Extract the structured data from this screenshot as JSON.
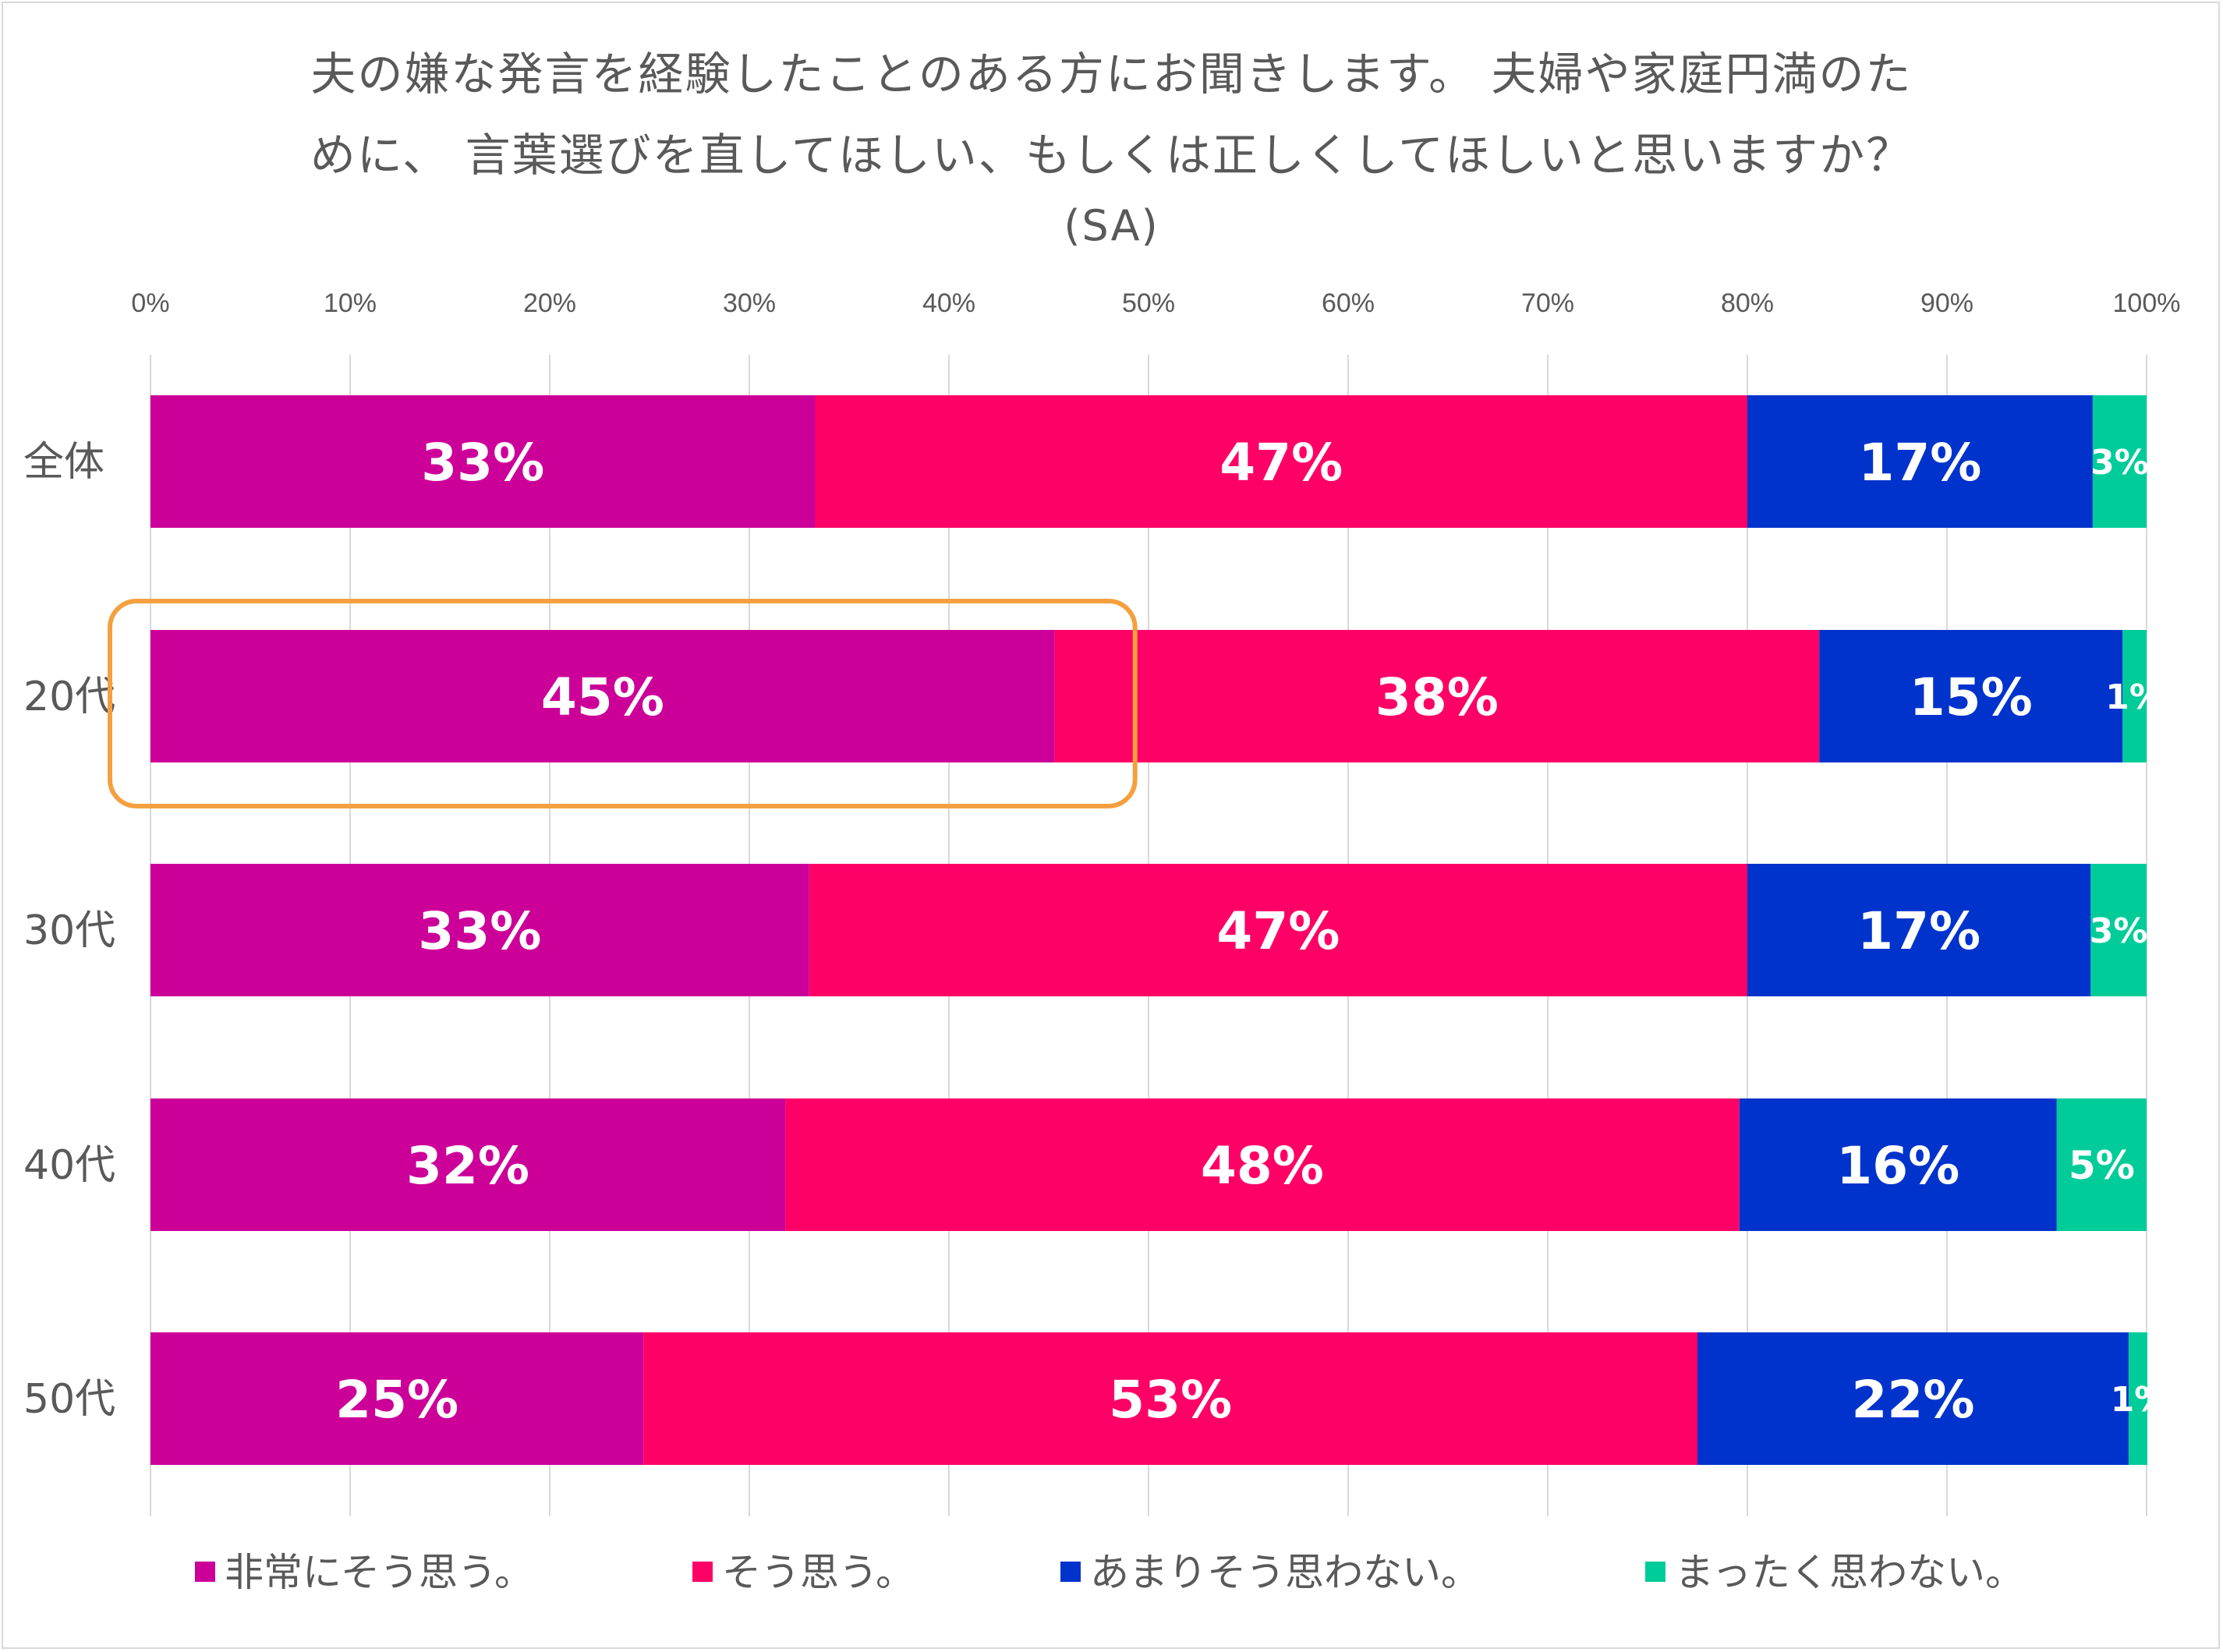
{
  "chart_data": {
    "type": "bar",
    "orientation": "horizontal",
    "stacked": true,
    "normalized": true,
    "title": "夫の嫌な発言を経験したことのある方にお聞きします。 夫婦や家庭円満のために、 言葉選びを直してほしい、もしくは正しくしてほしいと思いますか？",
    "title_lines": [
      "夫の嫌な発言を経験したことのある方にお聞きします。 夫婦や家庭円満のた",
      "めに、 言葉選びを直してほしい、もしくは正しくしてほしいと思いますか？"
    ],
    "subtitle": "(SA)",
    "categories": [
      "全体",
      "20代",
      "30代",
      "40代",
      "50代"
    ],
    "xlim": [
      0,
      100
    ],
    "xticks": [
      "0%",
      "10%",
      "20%",
      "30%",
      "40%",
      "50%",
      "60%",
      "70%",
      "80%",
      "90%",
      "100%"
    ],
    "grid": true,
    "legend_position": "bottom",
    "series": [
      {
        "name": "非常にそう思う。",
        "color": "#CC0099",
        "values": [
          33.3,
          45.3,
          33.0,
          31.8,
          24.7
        ],
        "labels": [
          "33%",
          "45%",
          "33%",
          "32%",
          "25%"
        ]
      },
      {
        "name": "そう思う。",
        "color": "#FF0066",
        "values": [
          46.7,
          38.3,
          47.0,
          47.8,
          52.8
        ],
        "labels": [
          "47%",
          "38%",
          "47%",
          "48%",
          "53%"
        ]
      },
      {
        "name": "あまりそう思わない。",
        "color": "#0033CC",
        "values": [
          17.3,
          15.2,
          17.2,
          15.9,
          21.6
        ],
        "labels": [
          "17%",
          "15%",
          "17%",
          "16%",
          "22%"
        ]
      },
      {
        "name": "まったく思わない。",
        "color": "#00CC99",
        "values": [
          2.7,
          1.2,
          2.8,
          4.5,
          1.1
        ],
        "labels": [
          "3%",
          "1%",
          "3%",
          "5%",
          "1%"
        ]
      }
    ],
    "annotation": {
      "shape": "rounded-rectangle",
      "color": "#F4A040",
      "target_category": "20代",
      "target_series": "非常にそう思う。"
    }
  }
}
